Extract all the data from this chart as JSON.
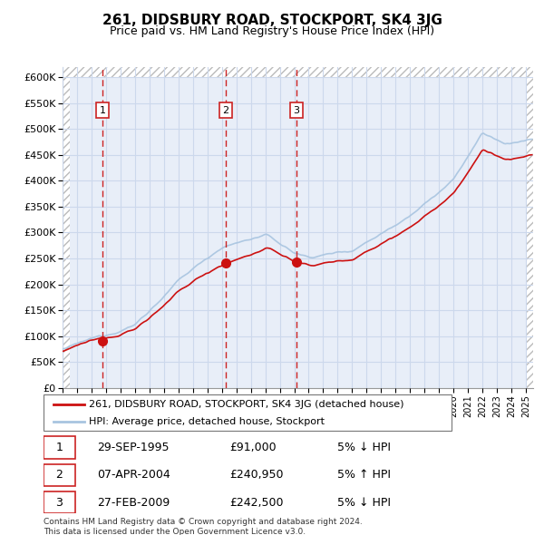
{
  "title": "261, DIDSBURY ROAD, STOCKPORT, SK4 3JG",
  "subtitle": "Price paid vs. HM Land Registry's House Price Index (HPI)",
  "hpi_line_color": "#a8c4e0",
  "price_line_color": "#cc1111",
  "vline_color": "#cc2222",
  "marker_color": "#cc1111",
  "transactions": [
    {
      "date_dec": 1995.75,
      "price": 91000,
      "label": "1"
    },
    {
      "date_dec": 2004.27,
      "price": 240950,
      "label": "2"
    },
    {
      "date_dec": 2009.16,
      "price": 242500,
      "label": "3"
    }
  ],
  "legend_entries": [
    "261, DIDSBURY ROAD, STOCKPORT, SK4 3JG (detached house)",
    "HPI: Average price, detached house, Stockport"
  ],
  "table_rows": [
    [
      "1",
      "29-SEP-1995",
      "£91,000",
      "5% ↓ HPI"
    ],
    [
      "2",
      "07-APR-2004",
      "£240,950",
      "5% ↑ HPI"
    ],
    [
      "3",
      "27-FEB-2009",
      "£242,500",
      "5% ↓ HPI"
    ]
  ],
  "footer": "Contains HM Land Registry data © Crown copyright and database right 2024.\nThis data is licensed under the Open Government Licence v3.0.",
  "ylim": [
    0,
    620000
  ],
  "yticks": [
    0,
    50000,
    100000,
    150000,
    200000,
    250000,
    300000,
    350000,
    400000,
    450000,
    500000,
    550000,
    600000
  ],
  "hatch_color": "#bbbbbb",
  "grid_color": "#ccd8ec",
  "background_color": "#e8eef8"
}
